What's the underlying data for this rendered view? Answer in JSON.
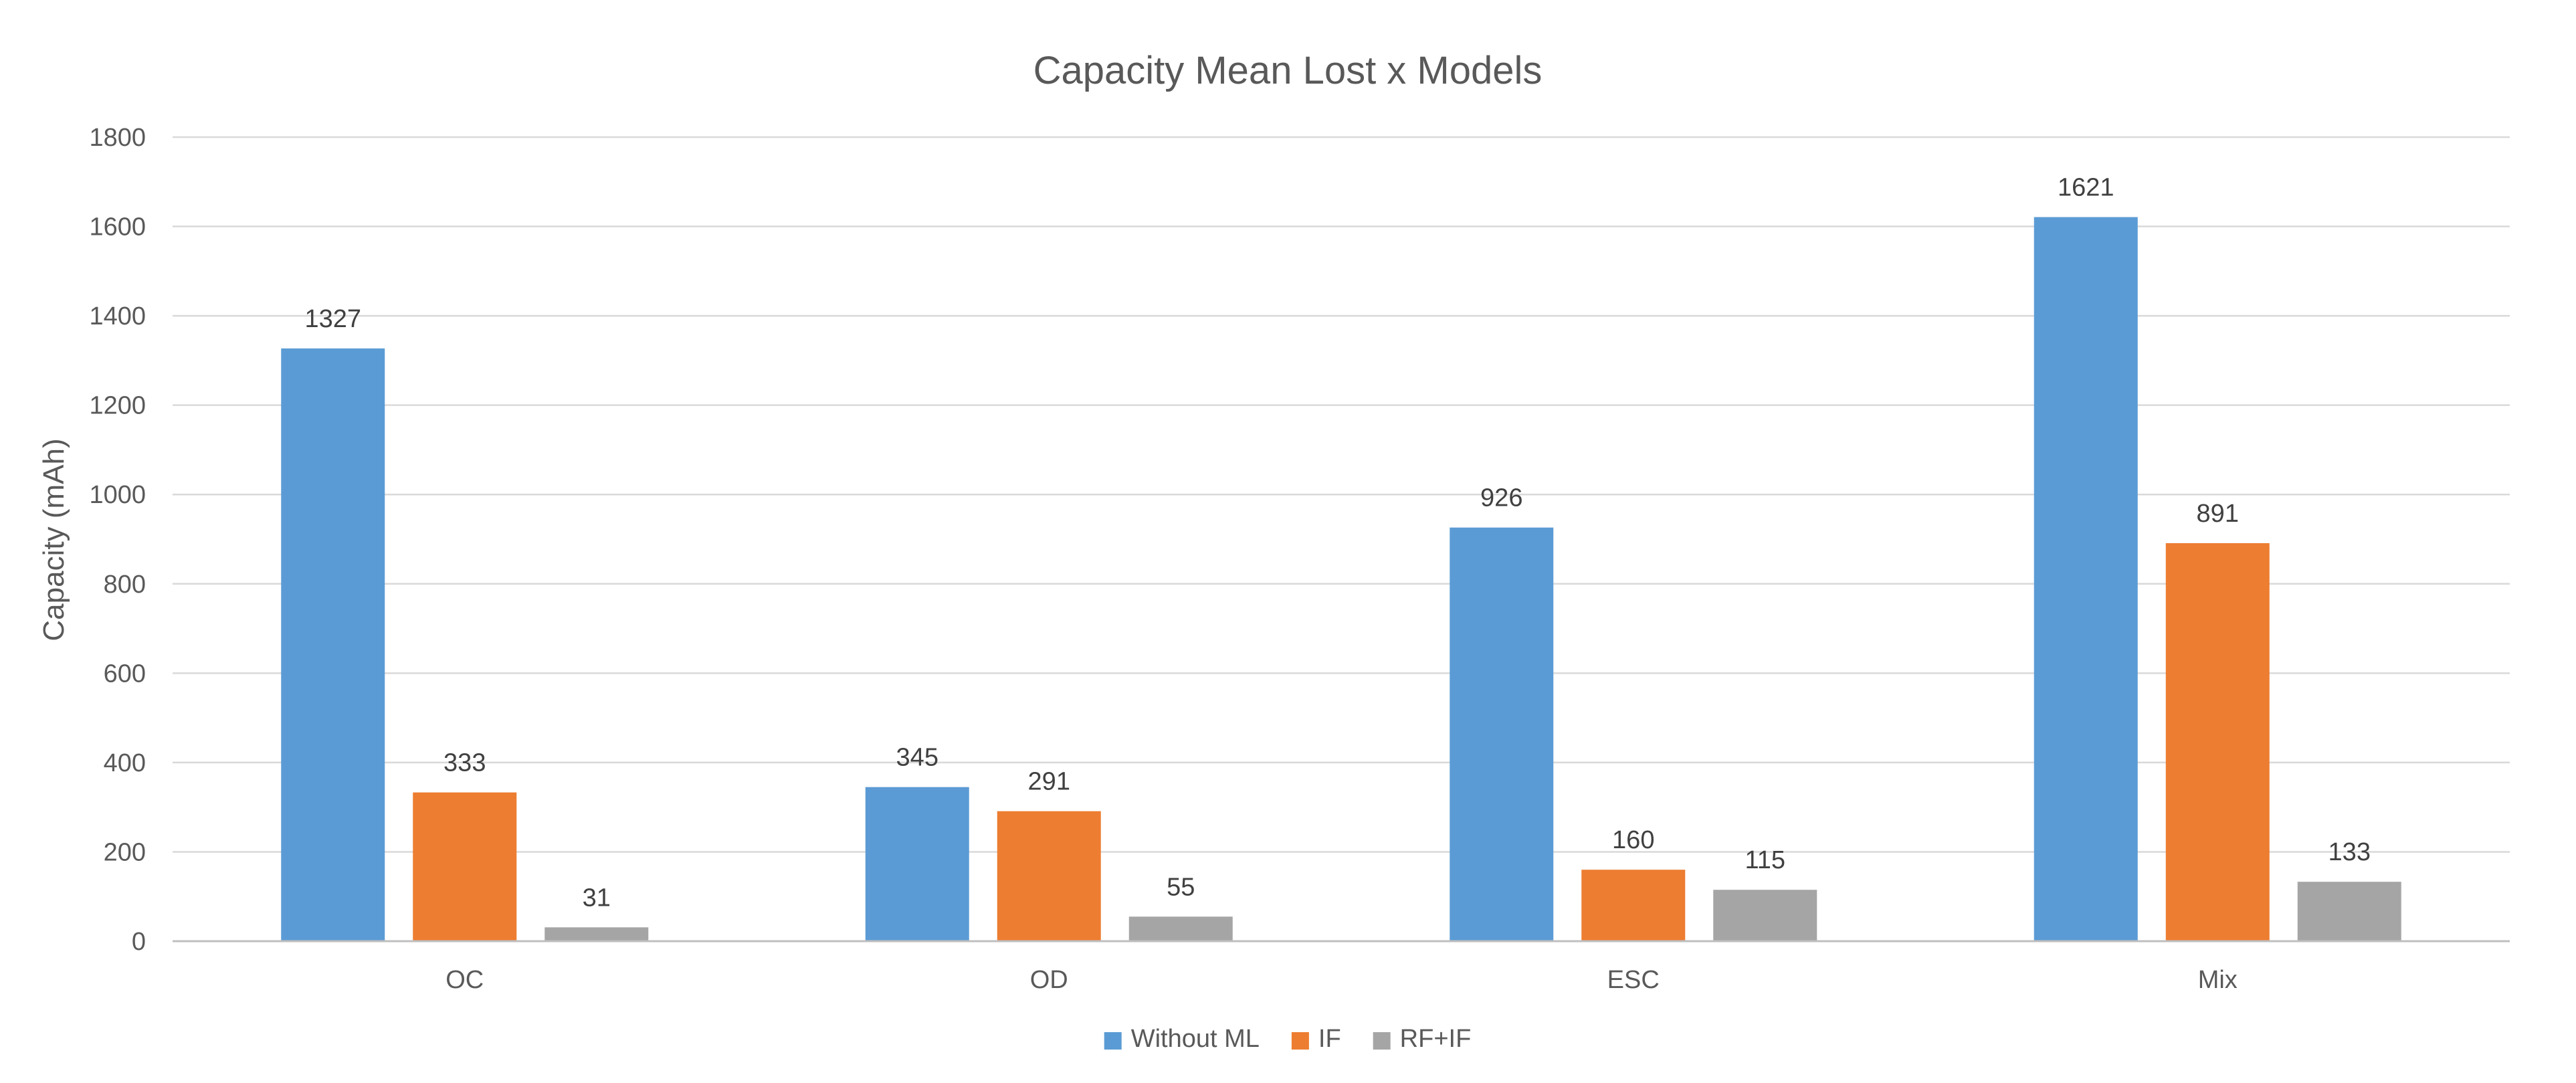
{
  "chart_data": {
    "type": "bar",
    "title": "Capacity Mean Lost x Models",
    "xlabel": "",
    "ylabel": "Capacity (mAh)",
    "categories": [
      "OC",
      "OD",
      "ESC",
      "Mix"
    ],
    "series": [
      {
        "name": "Without ML",
        "color": "#5b9bd5",
        "values": [
          1327,
          345,
          926,
          1621
        ]
      },
      {
        "name": "IF",
        "color": "#ed7d31",
        "values": [
          333,
          291,
          160,
          891
        ]
      },
      {
        "name": "RF+IF",
        "color": "#a5a5a5",
        "values": [
          31,
          55,
          115,
          133
        ]
      }
    ],
    "ylim": [
      0,
      1800
    ],
    "yticks": [
      "0",
      "200",
      "400",
      "600",
      "800",
      "1000",
      "1200",
      "1400",
      "1600",
      "1800"
    ],
    "grid": true,
    "legend": "bottom-center"
  }
}
